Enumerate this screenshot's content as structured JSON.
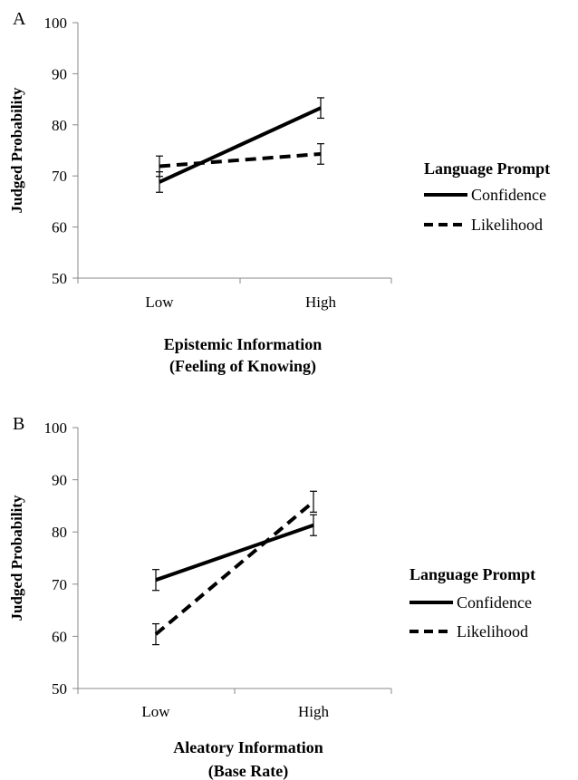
{
  "chart_data": [
    {
      "type": "line",
      "panel_label": "A",
      "categories": [
        "Low",
        "High"
      ],
      "ylabel": "Judged Probability",
      "xlabel_lines": [
        "Epistemic Information",
        "(Feeling of Knowing)"
      ],
      "ylim": [
        50,
        100
      ],
      "yticks": [
        50,
        60,
        70,
        80,
        90,
        100
      ],
      "legend_title": "Language Prompt",
      "legend_position": "right",
      "series": [
        {
          "name": "Confidence",
          "style": "solid",
          "values": [
            68.8,
            83.3
          ],
          "errors": [
            2.0,
            2.0
          ]
        },
        {
          "name": "Likelihood",
          "style": "dashed",
          "values": [
            71.9,
            74.3
          ],
          "errors": [
            2.0,
            2.0
          ]
        }
      ]
    },
    {
      "type": "line",
      "panel_label": "B",
      "categories": [
        "Low",
        "High"
      ],
      "ylabel": "Judged Probability",
      "xlabel_lines": [
        "Aleatory Information",
        "(Base Rate)"
      ],
      "ylim": [
        50,
        100
      ],
      "yticks": [
        50,
        60,
        70,
        80,
        90,
        100
      ],
      "legend_title": "Language Prompt",
      "legend_position": "right",
      "series": [
        {
          "name": "Confidence",
          "style": "solid",
          "values": [
            70.8,
            81.3
          ],
          "errors": [
            2.0,
            2.0
          ]
        },
        {
          "name": "Likelihood",
          "style": "dashed",
          "values": [
            60.4,
            85.8
          ],
          "errors": [
            2.0,
            2.0
          ]
        }
      ]
    }
  ]
}
